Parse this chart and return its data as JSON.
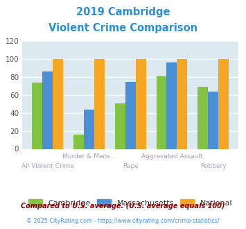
{
  "title_line1": "2019 Cambridge",
  "title_line2": "Violent Crime Comparison",
  "title_color": "#2b8fd4",
  "categories": [
    "All Violent Crime",
    "Murder & Mans...",
    "Rape",
    "Aggravated Assault",
    "Robbery"
  ],
  "cambridge": [
    74,
    16,
    51,
    81,
    69
  ],
  "massachusetts": [
    86,
    44,
    75,
    96,
    64
  ],
  "national": [
    100,
    100,
    100,
    100,
    100
  ],
  "cambridge_color": "#82c341",
  "massachusetts_color": "#4b8fd4",
  "national_color": "#f5a623",
  "ylim": [
    0,
    120
  ],
  "yticks": [
    0,
    20,
    40,
    60,
    80,
    100,
    120
  ],
  "legend_labels": [
    "Cambridge",
    "Massachusetts",
    "National"
  ],
  "footnote1": "Compared to U.S. average. (U.S. average equals 100)",
  "footnote2": "© 2025 CityRating.com - https://www.cityrating.com/crime-statistics/",
  "footnote1_color": "#8b0000",
  "footnote2_color": "#4a90d9",
  "fig_bg_color": "#ffffff",
  "plot_bg_color": "#dce9f0",
  "xlabel_color": "#aa99bb"
}
